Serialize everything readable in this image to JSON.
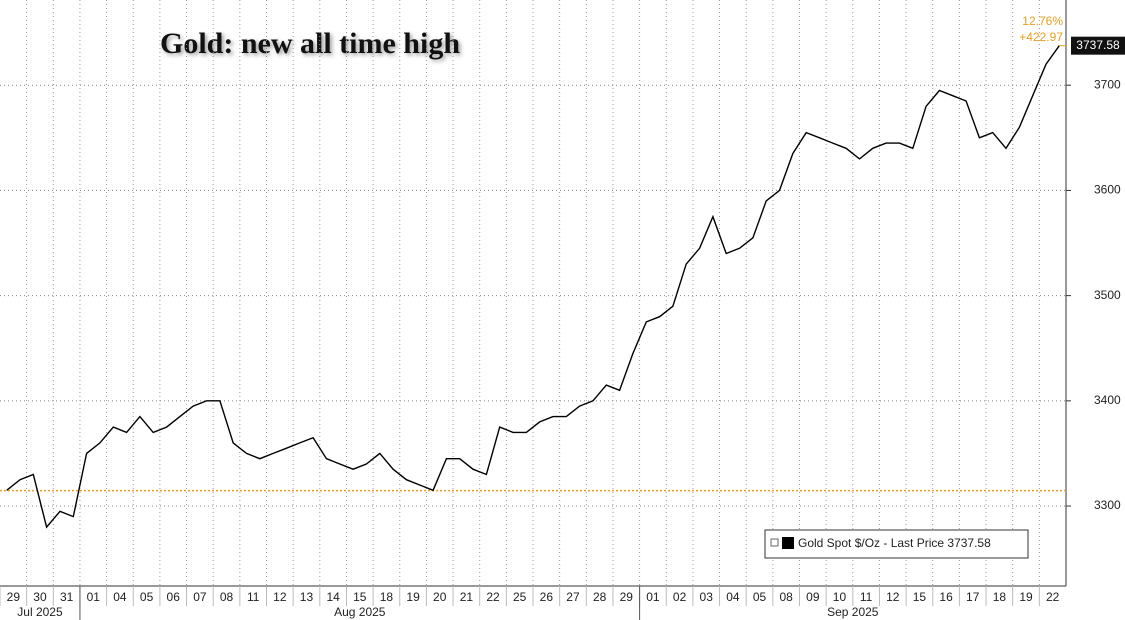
{
  "chart_data": {
    "type": "line",
    "title": "Gold: new all time high",
    "categories": [
      "29",
      null,
      "30",
      null,
      "31",
      null,
      "01",
      null,
      "04",
      null,
      "05",
      null,
      "06",
      null,
      "07",
      null,
      "08",
      null,
      "11",
      null,
      "12",
      null,
      "13",
      null,
      "14",
      null,
      "15",
      null,
      "18",
      null,
      "19",
      null,
      "20",
      null,
      "21",
      null,
      "22",
      null,
      "25",
      null,
      "26",
      null,
      "27",
      null,
      "28",
      null,
      "29",
      null,
      "01",
      null,
      "02",
      null,
      "03",
      null,
      "04",
      null,
      "05",
      null,
      "08",
      null,
      "09",
      null,
      "10",
      null,
      "11",
      null,
      "12",
      null,
      "15",
      null,
      "16",
      null,
      "17",
      null,
      "18",
      null,
      "19",
      null,
      "22",
      null
    ],
    "month_labels": [
      "Jul 2025",
      "Aug 2025",
      "Sep 2025"
    ],
    "series": [
      {
        "name": "Gold Spot $/Oz - Last Price 3737.58",
        "color": "#000000",
        "values": [
          3315,
          3325,
          3330,
          3280,
          3295,
          3290,
          3350,
          3360,
          3375,
          3370,
          3385,
          3370,
          3375,
          3385,
          3395,
          3400,
          3400,
          3360,
          3350,
          3345,
          3350,
          3355,
          3360,
          3365,
          3345,
          3340,
          3335,
          3340,
          3350,
          3335,
          3325,
          3320,
          3315,
          3345,
          3345,
          3335,
          3330,
          3375,
          3370,
          3370,
          3380,
          3385,
          3385,
          3395,
          3400,
          3415,
          3410,
          3445,
          3475,
          3480,
          3490,
          3530,
          3545,
          3575,
          3540,
          3545,
          3555,
          3590,
          3600,
          3635,
          3655,
          3650,
          3645,
          3640,
          3630,
          3640,
          3645,
          3645,
          3640,
          3680,
          3695,
          3690,
          3685,
          3650,
          3655,
          3640,
          3660,
          3690,
          3720,
          3737.58
        ]
      }
    ],
    "reference_line": {
      "value": 3314.61,
      "color": "#e8a020"
    },
    "change_labels": [
      "12.76%",
      "+422.97"
    ],
    "ylim": [
      3224,
      3781
    ],
    "yticks": [
      3300,
      3400,
      3500,
      3600,
      3700
    ],
    "grid": true
  }
}
